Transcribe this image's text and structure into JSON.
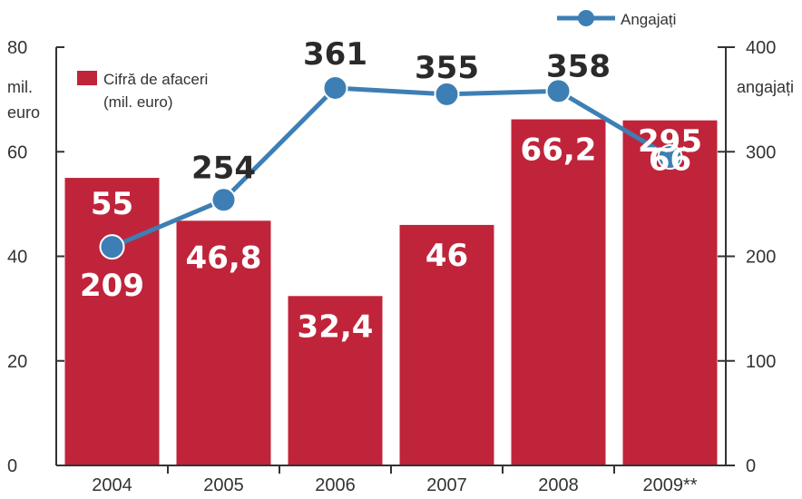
{
  "chart_data": {
    "type": "bar",
    "categories": [
      "2004",
      "2005",
      "2006",
      "2007",
      "2008",
      "2009**"
    ],
    "series": [
      {
        "name": "Cifră de afaceri (mil. euro)",
        "kind": "bar",
        "axis": "left",
        "values": [
          55,
          46.8,
          32.4,
          46,
          66.2,
          66
        ],
        "labels": [
          "55",
          "46,8",
          "32,4",
          "46",
          "66,2",
          "66"
        ],
        "color": "#c0243a"
      },
      {
        "name": "Angajați",
        "kind": "line",
        "axis": "right",
        "values": [
          209,
          254,
          361,
          355,
          358,
          295
        ],
        "labels": [
          "209",
          "254",
          "361",
          "355",
          "358",
          "295"
        ],
        "color": "#3d7fb4"
      }
    ],
    "y_left": {
      "ylim": [
        0,
        80
      ],
      "ticks": [
        "0",
        "20",
        "40",
        "60",
        "80"
      ],
      "unit_lines": [
        "mil.",
        "euro"
      ]
    },
    "y_right": {
      "ylim": [
        0,
        400
      ],
      "ticks": [
        "0",
        "100",
        "200",
        "300",
        "400"
      ],
      "unit": "angajați"
    },
    "legend": {
      "bar_label_lines": [
        "Cifră de afaceri",
        "(mil. euro)"
      ],
      "line_label": "Angajați"
    },
    "grid": false
  }
}
